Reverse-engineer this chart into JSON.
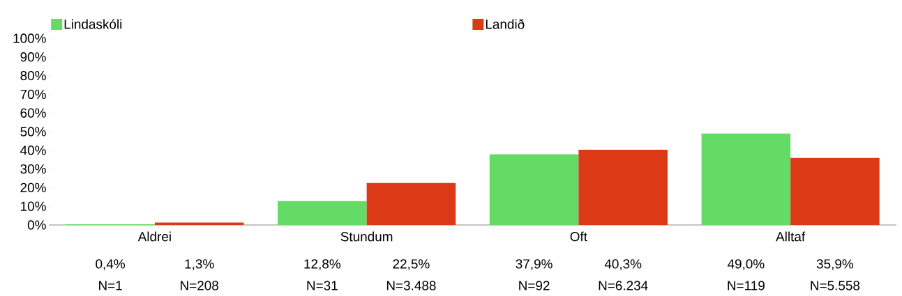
{
  "chart_data": {
    "type": "bar",
    "categories": [
      "Aldrei",
      "Stundum",
      "Oft",
      "Alltaf"
    ],
    "series": [
      {
        "name": "Lindaskóli",
        "color": "#64db64",
        "values": [
          0.4,
          12.8,
          37.9,
          49.0
        ],
        "value_labels": [
          "0,4%",
          "12,8%",
          "37,9%",
          "49,0%"
        ]
      },
      {
        "name": "Landið",
        "color": "#dc3a16",
        "values": [
          1.3,
          22.5,
          40.3,
          35.9
        ],
        "value_labels": [
          "1,3%",
          "22,5%",
          "40,3%",
          "35,9%"
        ]
      }
    ],
    "ylim": [
      0,
      100
    ],
    "yticks": [
      {
        "value": 0,
        "label": "0%"
      },
      {
        "value": 10,
        "label": "10%"
      },
      {
        "value": 20,
        "label": "20%"
      },
      {
        "value": 30,
        "label": "30%"
      },
      {
        "value": 40,
        "label": "40%"
      },
      {
        "value": 50,
        "label": "50%"
      },
      {
        "value": 60,
        "label": "60%"
      },
      {
        "value": 70,
        "label": "70%"
      },
      {
        "value": 80,
        "label": "80%"
      },
      {
        "value": 90,
        "label": "90%"
      },
      {
        "value": 100,
        "label": "100%"
      }
    ],
    "annotations": [
      "N=1",
      "N=208",
      "N=31",
      "N=3.488",
      "N=92",
      "N=6.234",
      "N=119",
      "N=5.558"
    ],
    "legend": "top",
    "grid": false
  }
}
